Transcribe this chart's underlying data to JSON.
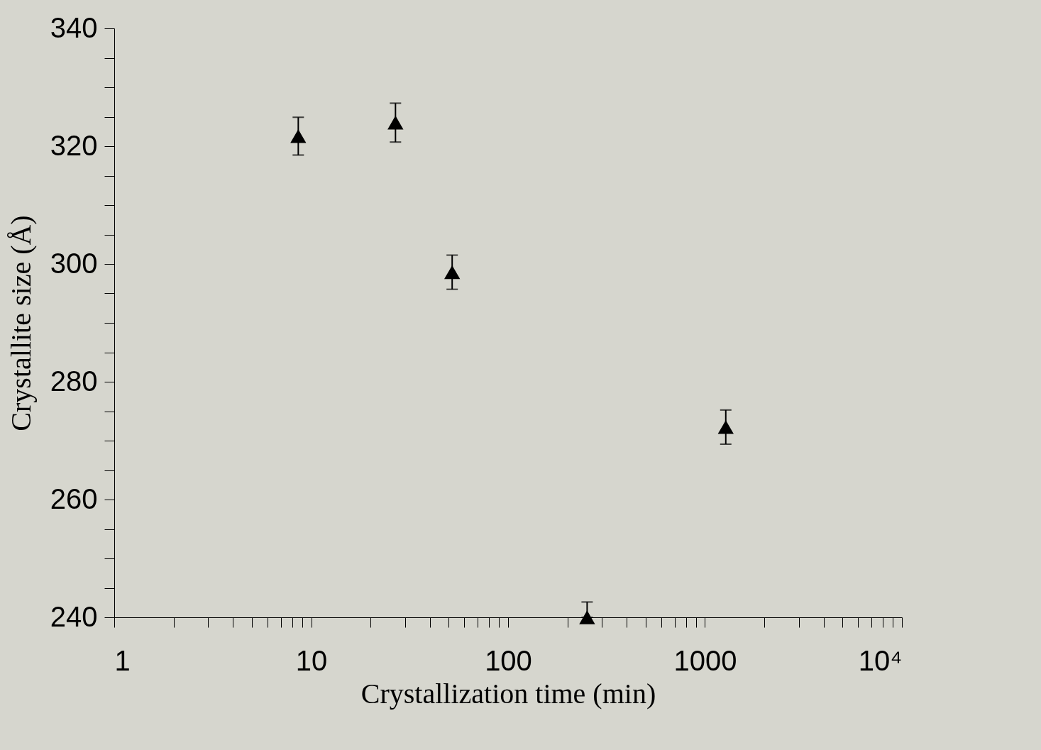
{
  "chart_data": {
    "type": "scatter",
    "xlabel": "Crystallization time (min)",
    "ylabel": "Crystallite size (Å)",
    "x": [
      8.6,
      26.8,
      52,
      252,
      1275
    ],
    "values": [
      321.7,
      324.0,
      298.6,
      240,
      272.3
    ],
    "errors": [
      3.2,
      3.3,
      2.9,
      [
        240,
        242.6
      ],
      2.9
    ],
    "color": "#000000",
    "marker": "triangle",
    "log": "x",
    "grid": false,
    "xlim": [
      1,
      10000
    ],
    "xticks": [
      1,
      {
        "value": 2,
        "label": null
      },
      {
        "value": 3,
        "label": null
      },
      {
        "value": 4,
        "label": null
      },
      {
        "value": 5,
        "label": null
      },
      {
        "value": 6,
        "label": null
      },
      {
        "value": 7,
        "label": null
      },
      {
        "value": 8,
        "label": null
      },
      {
        "value": 9,
        "label": null
      },
      10,
      {
        "value": 20,
        "label": null
      },
      {
        "value": 30,
        "label": null
      },
      {
        "value": 40,
        "label": null
      },
      {
        "value": 50,
        "label": null
      },
      {
        "value": 60,
        "label": null
      },
      {
        "value": 70,
        "label": null
      },
      {
        "value": 80,
        "label": null
      },
      {
        "value": 90,
        "label": null
      },
      100,
      {
        "value": 200,
        "label": null
      },
      {
        "value": 300,
        "label": null
      },
      {
        "value": 400,
        "label": null
      },
      {
        "value": 500,
        "label": null
      },
      {
        "value": 600,
        "label": null
      },
      {
        "value": 700,
        "label": null
      },
      {
        "value": 800,
        "label": null
      },
      {
        "value": 900,
        "label": null
      },
      1000,
      {
        "value": 2000,
        "label": null
      },
      {
        "value": 3000,
        "label": null
      },
      {
        "value": 4000,
        "label": null
      },
      {
        "value": 5000,
        "label": null
      },
      {
        "value": 6000,
        "label": null
      },
      {
        "value": 7000,
        "label": null
      },
      {
        "value": 8000,
        "label": null
      },
      {
        "value": 9000,
        "label": null
      },
      {
        "value": 10000,
        "label": "10⁴"
      }
    ],
    "ylim": [
      240,
      340
    ],
    "yticks": [
      240,
      {
        "value": 245,
        "label": null
      },
      {
        "value": 250,
        "label": null
      },
      {
        "value": 255,
        "label": null
      },
      260,
      {
        "value": 265,
        "label": null
      },
      {
        "value": 270,
        "label": null
      },
      {
        "value": 275,
        "label": null
      },
      280,
      {
        "value": 285,
        "label": null
      },
      {
        "value": 290,
        "label": null
      },
      {
        "value": 295,
        "label": null
      },
      300,
      {
        "value": 305,
        "label": null
      },
      {
        "value": 310,
        "label": null
      },
      {
        "value": 315,
        "label": null
      },
      320,
      {
        "value": 325,
        "label": null
      },
      {
        "value": 330,
        "label": null
      },
      {
        "value": 335,
        "label": null
      },
      340
    ]
  }
}
